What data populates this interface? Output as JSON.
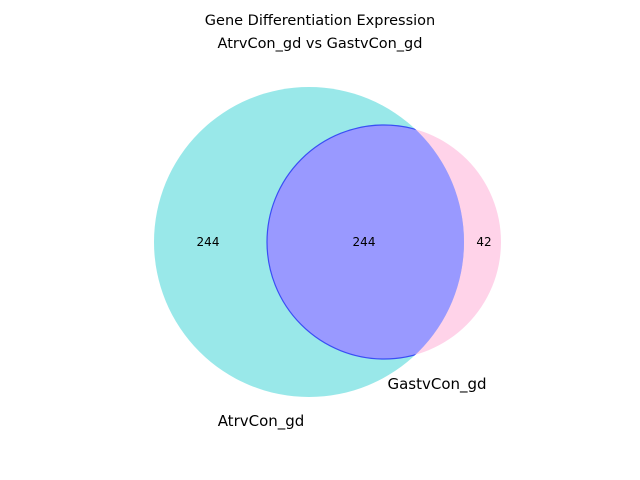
{
  "title": [
    "Gene Differentiation Expression",
    "AtrvCon_gd vs GastvCon_gd"
  ],
  "sets": [
    {
      "name": "AtrvCon_gd",
      "color": "#00C5C7"
    },
    {
      "name": "GastvCon_gd",
      "color": "#FF80C0"
    }
  ],
  "regions": {
    "only_a": "244",
    "overlap": "244",
    "only_b": "42"
  },
  "overlap_color": "#9999FF",
  "overlap_edge_color": "#3A4EF5"
}
